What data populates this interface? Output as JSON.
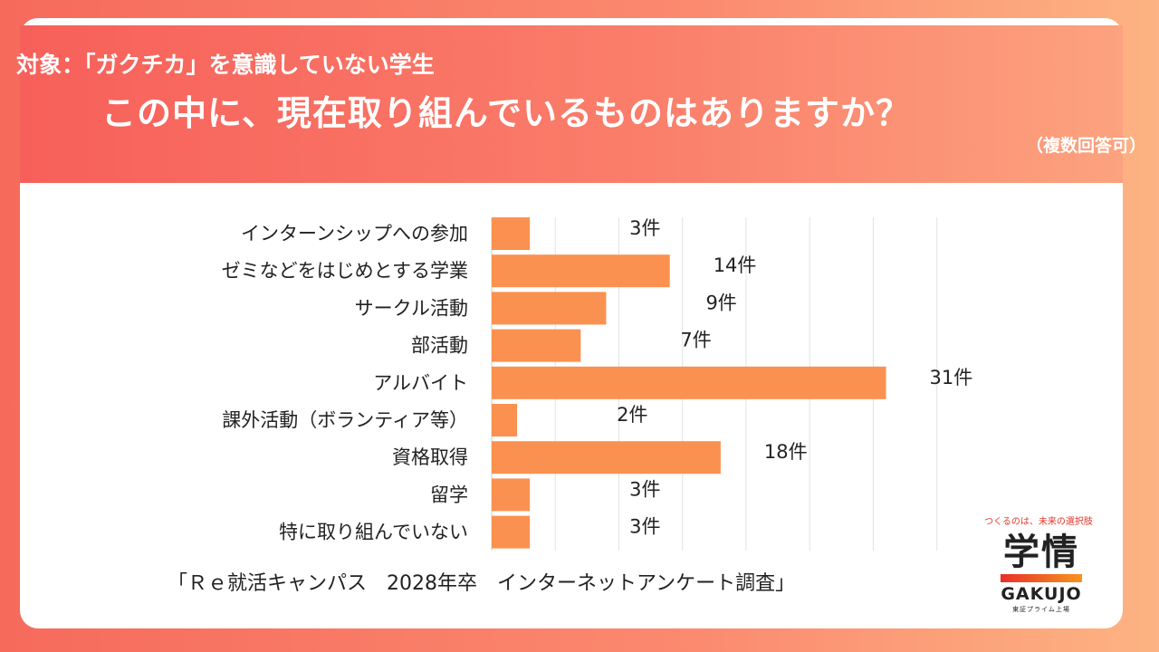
{
  "header": {
    "subtitle": "対象：「ガクチカ」を意識していない学生",
    "title": "この中に、現在取り組んでいるものはありますか？",
    "note": "（複数回答可）"
  },
  "chart_data": {
    "type": "bar",
    "orientation": "horizontal",
    "categories": [
      "インターンシップへの参加",
      "ゼミなどをはじめとする学業",
      "サークル活動",
      "部活動",
      "アルバイト",
      "課外活動（ボランティア等）",
      "資格取得",
      "留学",
      "特に取り組んでいない"
    ],
    "values": [
      3,
      14,
      9,
      7,
      31,
      2,
      18,
      3,
      3
    ],
    "value_labels": [
      "3件",
      "14件",
      "9件",
      "7件",
      "31件",
      "2件",
      "18件",
      "3件",
      "3件"
    ],
    "xlim": [
      0,
      35
    ],
    "grid": true,
    "bar_color": "#fb9150"
  },
  "source": "「Ｒｅ就活キャンパス　2028年卒　インターネットアンケート調査」",
  "logo": {
    "tagline": "つくるのは、未来の選択肢",
    "name": "学情",
    "brand": "GAKUJO",
    "sub": "東証プライム上場"
  }
}
